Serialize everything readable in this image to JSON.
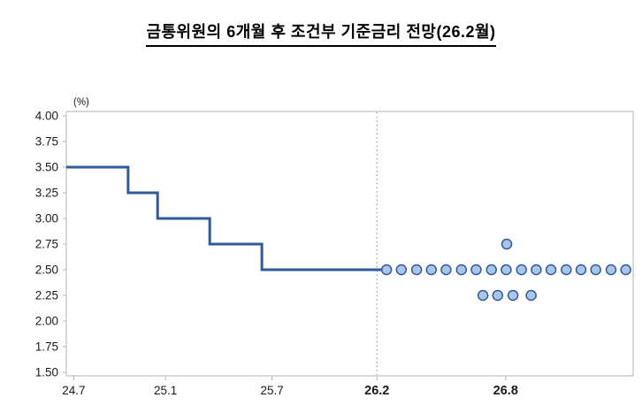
{
  "chart_data": {
    "type": "line+scatter",
    "title": "금통위원의 6개월 후 조건부 기준금리 전망(26.2월)",
    "unit_label": "(%)",
    "ylim": [
      1.5,
      4.0
    ],
    "ytick_step": 0.25,
    "yticks": [
      "4.00",
      "3.75",
      "3.50",
      "3.25",
      "3.00",
      "2.75",
      "2.50",
      "2.25",
      "2.00",
      "1.75",
      "1.50"
    ],
    "xticks": [
      {
        "label": "24.7",
        "pos": 0.013,
        "bold": false
      },
      {
        "label": "25.1",
        "pos": 0.175,
        "bold": false
      },
      {
        "label": "25.7",
        "pos": 0.363,
        "bold": false
      },
      {
        "label": "26.2",
        "pos": 0.548,
        "bold": true
      },
      {
        "label": "26.8",
        "pos": 0.775,
        "bold": true
      }
    ],
    "frame_color": "#b3b3b3",
    "text_color": "#1a1a1a",
    "policy_rate_path": {
      "color": "#2f5b9b",
      "width": 3,
      "steps": [
        {
          "rate": 3.5,
          "from_pos": 0.0,
          "to_pos": 0.109
        },
        {
          "rate": 3.25,
          "from_pos": 0.109,
          "to_pos": 0.161
        },
        {
          "rate": 3.0,
          "from_pos": 0.161,
          "to_pos": 0.253
        },
        {
          "rate": 2.75,
          "from_pos": 0.253,
          "to_pos": 0.345
        },
        {
          "rate": 2.5,
          "from_pos": 0.345,
          "to_pos": 0.557
        }
      ]
    },
    "divider_line": {
      "pos": 0.548,
      "color": "#9a9a9a",
      "style": "dotted"
    },
    "forecast_dots": {
      "fill": "#a9c6e7",
      "stroke": "#2f5b9b",
      "radius": 5.5,
      "groups": [
        {
          "rate": 2.5,
          "positions": [
            0.565,
            0.591,
            0.618,
            0.644,
            0.67,
            0.697,
            0.723,
            0.75,
            0.776,
            0.803,
            0.829,
            0.855,
            0.882,
            0.908,
            0.934,
            0.961,
            0.987
          ]
        },
        {
          "rate": 2.25,
          "positions": [
            0.735,
            0.761,
            0.788,
            0.82
          ]
        },
        {
          "rate": 2.75,
          "positions": [
            0.777
          ]
        }
      ]
    },
    "legend": "none",
    "grid": "off"
  }
}
